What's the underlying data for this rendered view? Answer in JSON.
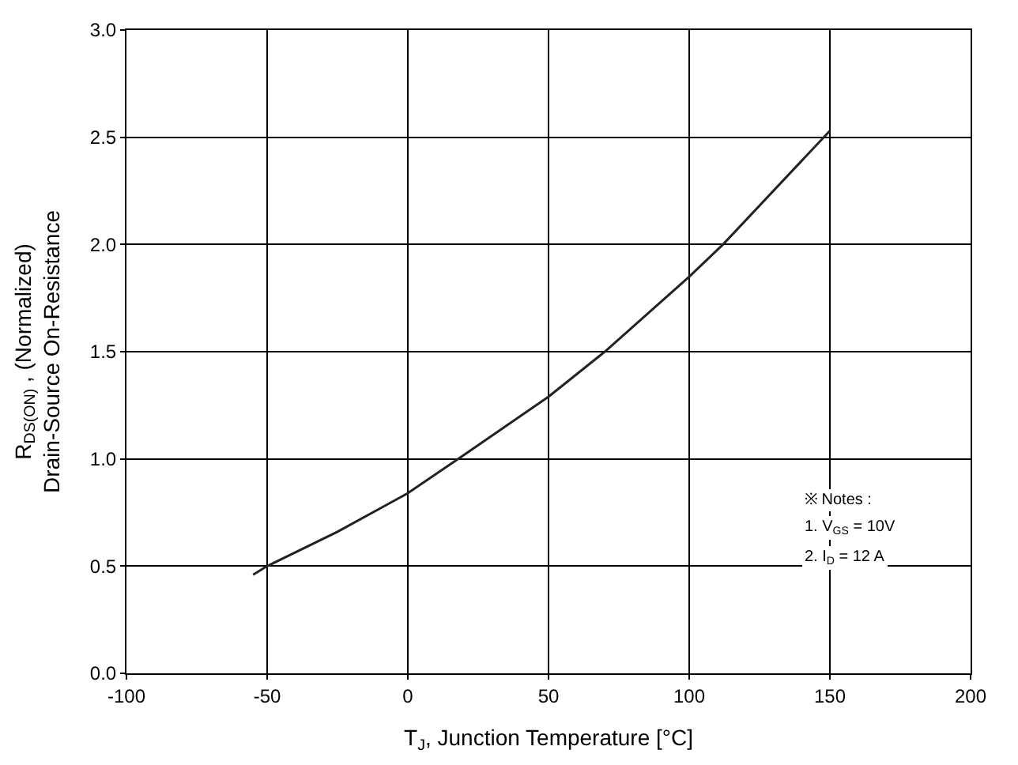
{
  "chart_data": {
    "type": "line",
    "xlabel": "T$_{J}$, Junction Temperature [°C]",
    "ylabel": "R$_{DS(ON)}$ , (Normalized)\nDrain-Source On-Resistance",
    "annotations": [
      "※ Notes :",
      "1. V$_{GS}$ = 10V",
      "2. I$_{D}$ = 12 A"
    ],
    "series": [
      {
        "color": "#222222",
        "x": [
          -55,
          -50,
          -25,
          0,
          19,
          50,
          70,
          100,
          112,
          150
        ],
        "values": [
          0.46,
          0.5,
          0.66,
          0.84,
          1.01,
          1.29,
          1.5,
          1.85,
          2.0,
          2.53
        ]
      }
    ],
    "xlim": [
      -100,
      200
    ],
    "xticks": [
      -100,
      -50,
      0,
      50,
      100,
      150,
      200
    ],
    "ylim": [
      0,
      3
    ],
    "yticks": [
      {
        "value": 0,
        "label": "0.0"
      },
      0.5,
      {
        "value": 1,
        "label": "1.0"
      },
      1.5,
      {
        "value": 2,
        "label": "2.0"
      },
      2.5,
      {
        "value": 3,
        "label": "3.0"
      }
    ],
    "grid": true,
    "marker": "none",
    "line_style": "solid"
  }
}
